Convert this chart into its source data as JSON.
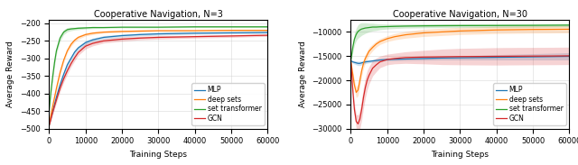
{
  "title1": "Cooperative Navigation, N=3",
  "title2": "Cooperative Navigation, N=30",
  "xlabel": "Training Steps",
  "ylabel": "Average Reward",
  "legend": [
    "MLP",
    "deep sets",
    "set transformer",
    "GCN"
  ],
  "colors": {
    "MLP": "#1f77b4",
    "deep sets": "#ff7f0e",
    "set transformer": "#2ca02c",
    "GCN": "#d62728"
  },
  "plot1": {
    "xlim": [
      0,
      60000
    ],
    "ylim": [
      -500,
      -190
    ],
    "yticks": [
      -500,
      -450,
      -400,
      -350,
      -300,
      -250,
      -200
    ],
    "xticks": [
      0,
      10000,
      20000,
      30000,
      40000,
      50000,
      60000
    ],
    "MLP_mean": {
      "x": [
        0,
        300,
        600,
        1000,
        1500,
        2000,
        3000,
        4000,
        5000,
        6000,
        7000,
        8000,
        10000,
        12000,
        15000,
        20000,
        25000,
        30000,
        40000,
        50000,
        60000
      ],
      "y": [
        -490,
        -478,
        -465,
        -450,
        -430,
        -410,
        -375,
        -345,
        -318,
        -300,
        -282,
        -270,
        -255,
        -247,
        -240,
        -235,
        -232,
        -230,
        -228,
        -227,
        -226
      ]
    },
    "deep_sets_mean": {
      "x": [
        0,
        300,
        600,
        1000,
        1500,
        2000,
        3000,
        4000,
        5000,
        6000,
        7000,
        8000,
        10000,
        12000,
        15000,
        20000,
        25000,
        30000,
        40000,
        50000,
        60000
      ],
      "y": [
        -490,
        -472,
        -455,
        -435,
        -410,
        -385,
        -340,
        -305,
        -278,
        -260,
        -248,
        -240,
        -232,
        -228,
        -225,
        -223,
        -222,
        -221,
        -221,
        -220,
        -220
      ]
    },
    "set_transformer_mean": {
      "x": [
        0,
        300,
        600,
        1000,
        1500,
        2000,
        3000,
        4000,
        5000,
        6000,
        7000,
        8000,
        10000,
        12000,
        15000,
        20000,
        25000,
        30000,
        40000,
        50000,
        60000
      ],
      "y": [
        -450,
        -415,
        -385,
        -350,
        -310,
        -278,
        -242,
        -225,
        -218,
        -216,
        -215,
        -214,
        -213,
        -212,
        -212,
        -211,
        -211,
        -211,
        -210,
        -210,
        -210
      ]
    },
    "GCN_mean": {
      "x": [
        0,
        300,
        600,
        1000,
        1500,
        2000,
        3000,
        4000,
        5000,
        6000,
        7000,
        8000,
        10000,
        12000,
        15000,
        20000,
        25000,
        30000,
        40000,
        50000,
        60000
      ],
      "y": [
        -490,
        -480,
        -468,
        -452,
        -435,
        -418,
        -385,
        -358,
        -335,
        -315,
        -298,
        -283,
        -265,
        -257,
        -250,
        -245,
        -242,
        -240,
        -238,
        -236,
        -234
      ]
    },
    "MLP_std": [
      3,
      4,
      5,
      6,
      7,
      8,
      9,
      8,
      8,
      7,
      7,
      6,
      6,
      5,
      5,
      4,
      4,
      4,
      3,
      3,
      3
    ],
    "deep_sets_std": [
      3,
      4,
      5,
      6,
      7,
      8,
      8,
      7,
      6,
      6,
      5,
      5,
      4,
      4,
      3,
      3,
      3,
      2,
      2,
      2,
      2
    ],
    "set_transformer_std": [
      5,
      7,
      8,
      9,
      10,
      10,
      9,
      7,
      6,
      5,
      4,
      4,
      3,
      3,
      2,
      2,
      2,
      2,
      2,
      2,
      2
    ],
    "GCN_std": [
      3,
      4,
      5,
      7,
      8,
      9,
      10,
      10,
      10,
      9,
      9,
      8,
      8,
      7,
      6,
      6,
      5,
      5,
      4,
      4,
      3
    ]
  },
  "plot2": {
    "xlim": [
      0,
      60000
    ],
    "ylim": [
      -30000,
      -7500
    ],
    "yticks": [
      -30000,
      -25000,
      -20000,
      -15000,
      -10000
    ],
    "xticks": [
      0,
      10000,
      20000,
      30000,
      40000,
      50000,
      60000
    ],
    "MLP_mean": {
      "x": [
        0,
        300,
        600,
        1000,
        1500,
        2000,
        2500,
        3000,
        3500,
        4000,
        5000,
        6000,
        7000,
        8000,
        10000,
        15000,
        20000,
        25000,
        30000,
        35000,
        40000,
        45000,
        50000,
        55000,
        60000
      ],
      "y": [
        -16000,
        -16100,
        -16200,
        -16300,
        -16400,
        -16500,
        -16500,
        -16400,
        -16300,
        -16200,
        -16100,
        -16000,
        -15900,
        -15800,
        -15700,
        -15600,
        -15500,
        -15400,
        -15350,
        -15300,
        -15250,
        -15200,
        -15150,
        -15100,
        -15050
      ]
    },
    "deep_sets_mean": {
      "x": [
        0,
        300,
        600,
        1000,
        1500,
        2000,
        2500,
        3000,
        3500,
        4000,
        5000,
        6000,
        7000,
        8000,
        10000,
        12000,
        15000,
        20000,
        25000,
        30000,
        35000,
        40000,
        45000,
        50000,
        55000,
        60000
      ],
      "y": [
        -16000,
        -17500,
        -19000,
        -21000,
        -22500,
        -22000,
        -20000,
        -18000,
        -16500,
        -15500,
        -14000,
        -13200,
        -12500,
        -12000,
        -11400,
        -11000,
        -10600,
        -10200,
        -10000,
        -9800,
        -9700,
        -9600,
        -9550,
        -9500,
        -9480,
        -9450
      ]
    },
    "set_transformer_mean": {
      "x": [
        0,
        300,
        600,
        1000,
        1500,
        2000,
        2500,
        3000,
        3500,
        4000,
        5000,
        6000,
        7000,
        8000,
        10000,
        12000,
        15000,
        20000,
        25000,
        30000,
        40000,
        50000,
        60000
      ],
      "y": [
        -16000,
        -14500,
        -13000,
        -11500,
        -10500,
        -9900,
        -9600,
        -9400,
        -9300,
        -9200,
        -9100,
        -9000,
        -9000,
        -8950,
        -8900,
        -8850,
        -8800,
        -8750,
        -8720,
        -8700,
        -8680,
        -8650,
        -8600
      ]
    },
    "GCN_mean": {
      "x": [
        0,
        300,
        600,
        1000,
        1500,
        2000,
        2500,
        3000,
        3500,
        4000,
        4500,
        5000,
        6000,
        7000,
        8000,
        10000,
        12000,
        15000,
        20000,
        25000,
        30000,
        35000,
        40000,
        45000,
        50000,
        55000,
        60000
      ],
      "y": [
        -16000,
        -19000,
        -22500,
        -26000,
        -28500,
        -29000,
        -28000,
        -26000,
        -23500,
        -21500,
        -20000,
        -19000,
        -17500,
        -16800,
        -16200,
        -15700,
        -15500,
        -15300,
        -15200,
        -15150,
        -15100,
        -15080,
        -15050,
        -15020,
        -15000,
        -14980,
        -14950
      ]
    },
    "MLP_std": [
      200,
      250,
      300,
      350,
      400,
      450,
      450,
      400,
      380,
      350,
      300,
      280,
      260,
      250,
      250,
      300,
      350,
      400,
      450,
      500,
      550,
      600,
      650,
      700,
      750
    ],
    "deep_sets_std": [
      300,
      500,
      700,
      900,
      1100,
      1200,
      1200,
      1100,
      1000,
      900,
      800,
      700,
      650,
      600,
      600,
      650,
      700,
      750,
      750,
      750,
      750,
      750,
      750,
      750,
      750,
      750
    ],
    "set_transformer_std": [
      600,
      800,
      1000,
      1200,
      1300,
      1400,
      1400,
      1300,
      1200,
      1100,
      900,
      800,
      700,
      600,
      500,
      450,
      400,
      400,
      400,
      400,
      400,
      380,
      350
    ],
    "GCN_std": [
      300,
      600,
      900,
      1200,
      1500,
      1800,
      2000,
      2200,
      2200,
      2100,
      2000,
      1800,
      1600,
      1400,
      1200,
      1100,
      1100,
      1200,
      1400,
      1600,
      1700,
      1750,
      1800,
      1800,
      1800,
      1800,
      1800
    ]
  }
}
